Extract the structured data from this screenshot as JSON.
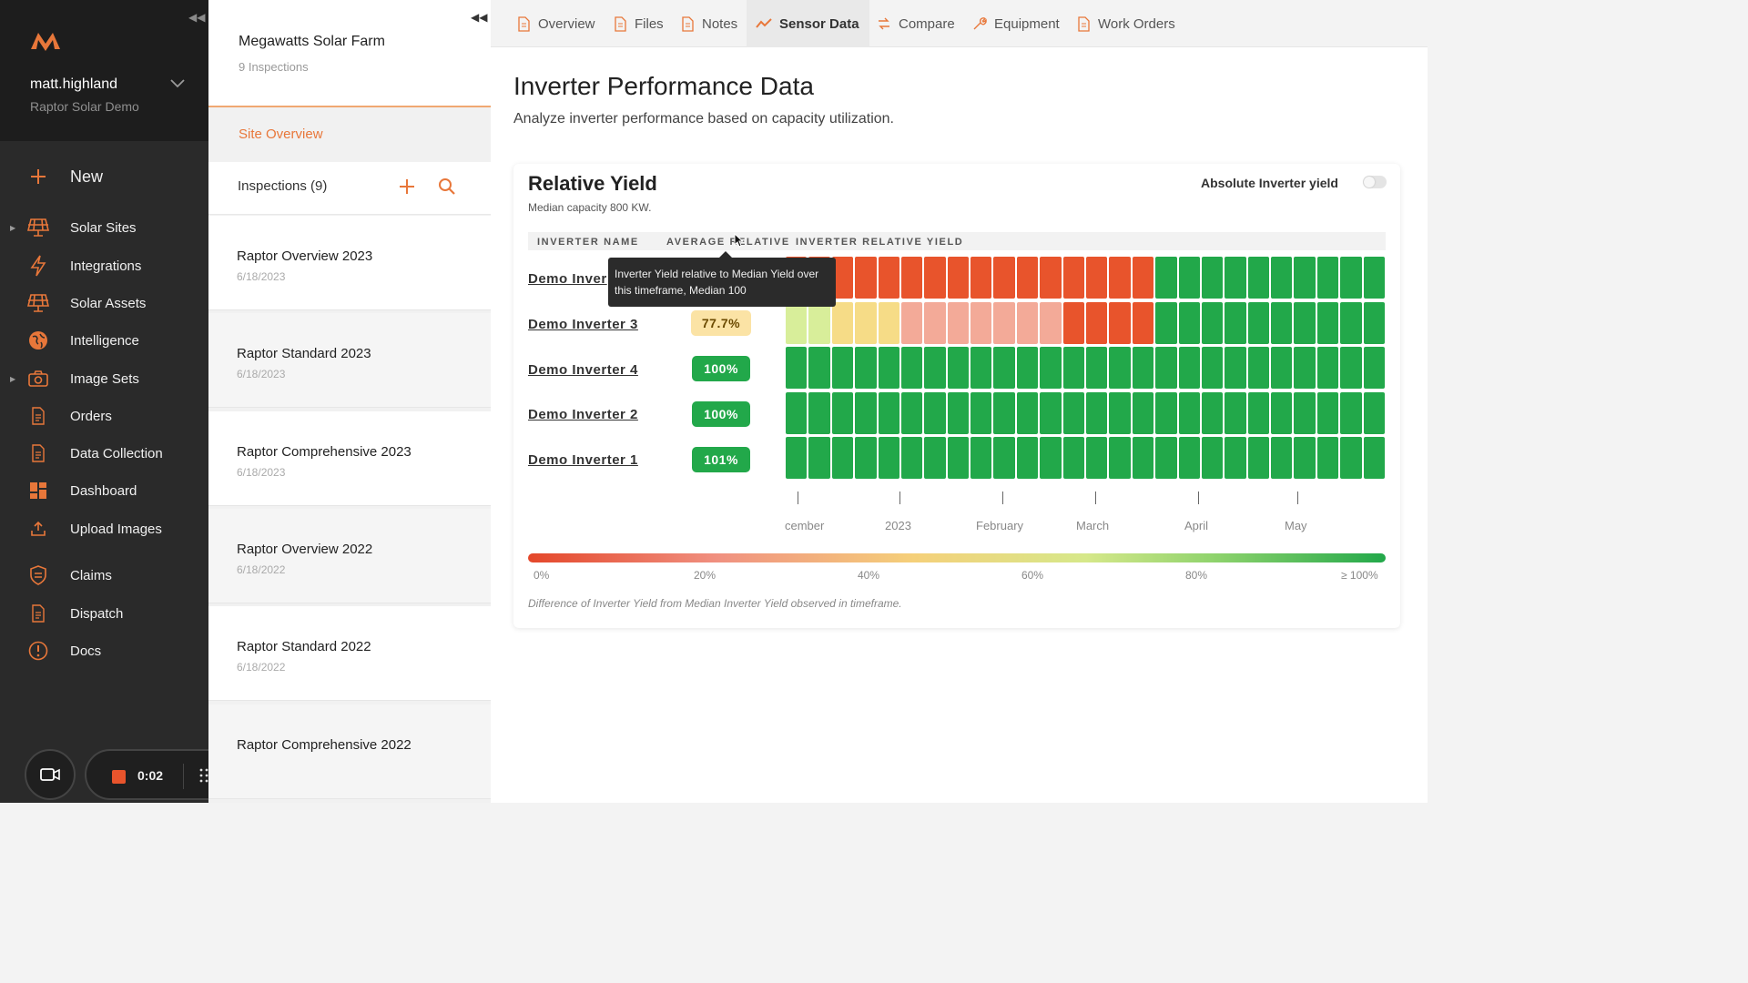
{
  "sidebar": {
    "user": {
      "name": "matt.highland",
      "org": "Raptor Solar Demo"
    },
    "items": [
      {
        "id": "new",
        "label": "New",
        "icon": "plus-icon"
      },
      {
        "id": "solar-sites",
        "label": "Solar Sites",
        "icon": "solar-panel-icon"
      },
      {
        "id": "integrations",
        "label": "Integrations",
        "icon": "lightning-icon"
      },
      {
        "id": "solar-assets",
        "label": "Solar Assets",
        "icon": "solar-panel-icon"
      },
      {
        "id": "intelligence",
        "label": "Intelligence",
        "icon": "globe-icon"
      },
      {
        "id": "image-sets",
        "label": "Image Sets",
        "icon": "camera-icon"
      },
      {
        "id": "orders",
        "label": "Orders",
        "icon": "document-icon"
      },
      {
        "id": "data-collection",
        "label": "Data Collection",
        "icon": "document-icon"
      },
      {
        "id": "dashboard",
        "label": "Dashboard",
        "icon": "dashboard-icon"
      },
      {
        "id": "upload-images",
        "label": "Upload Images",
        "icon": "upload-icon"
      },
      {
        "id": "claims",
        "label": "Claims",
        "icon": "shield-icon"
      },
      {
        "id": "dispatch",
        "label": "Dispatch",
        "icon": "document-icon"
      },
      {
        "id": "docs",
        "label": "Docs",
        "icon": "info-icon"
      }
    ]
  },
  "recorder": {
    "time": "0:02"
  },
  "site": {
    "name": "Megawatts Solar Farm",
    "inspections_count_label": "9 Inspections",
    "overview_link": "Site Overview",
    "inspections_header": "Inspections (9)",
    "inspections": [
      {
        "name": "Raptor Overview 2023",
        "date": "6/18/2023"
      },
      {
        "name": "Raptor Standard 2023",
        "date": "6/18/2023"
      },
      {
        "name": "Raptor Comprehensive 2023",
        "date": "6/18/2023"
      },
      {
        "name": "Raptor Overview 2022",
        "date": "6/18/2022"
      },
      {
        "name": "Raptor Standard 2022",
        "date": "6/18/2022"
      },
      {
        "name": "Raptor Comprehensive 2022",
        "date": ""
      }
    ]
  },
  "tabs": [
    {
      "label": "Overview",
      "icon": "document-icon",
      "active": false
    },
    {
      "label": "Files",
      "icon": "document-icon",
      "active": false
    },
    {
      "label": "Notes",
      "icon": "document-icon",
      "active": false
    },
    {
      "label": "Sensor Data",
      "icon": "line-chart-icon",
      "active": true
    },
    {
      "label": "Compare",
      "icon": "compare-icon",
      "active": false
    },
    {
      "label": "Equipment",
      "icon": "wrench-icon",
      "active": false
    },
    {
      "label": "Work Orders",
      "icon": "document-icon",
      "active": false
    }
  ],
  "page": {
    "title": "Inverter Performance Data",
    "subtitle": "Analyze inverter performance based on capacity utilization."
  },
  "card": {
    "title": "Relative Yield",
    "median": "Median capacity 800 KW.",
    "toggle_label": "Absolute Inverter yield",
    "toggle_on": false,
    "columns": [
      "INVERTER NAME",
      "AVERAGE RELATIVE",
      "INVERTER RELATIVE YIELD"
    ],
    "tooltip": "Inverter Yield relative to Median Yield over this timeframe, Median 100",
    "legend_caption": "Difference of Inverter Yield from Median Inverter Yield observed in timeframe."
  },
  "colors": {
    "accent": "#e8773a",
    "high": "#22a84a",
    "low": "#e8542c",
    "mid_light": "#f3aa98",
    "yellow": "#f6dc87",
    "yellow_green": "#d8ee9a",
    "badge_yellow_bg": "#fbe3a5",
    "badge_yellow_text": "#6b4a00"
  },
  "chart_data": {
    "type": "heatmap",
    "title": "Relative Yield",
    "x_tick_labels": [
      "cember",
      "2023",
      "February",
      "March",
      "April",
      "May"
    ],
    "legend_labels": [
      "0%",
      "20%",
      "40%",
      "60%",
      "80%",
      "≥ 100%"
    ],
    "rows": [
      {
        "name": "Demo Inver",
        "average": "",
        "cells": [
          "low",
          "low",
          "low",
          "low",
          "low",
          "low",
          "low",
          "low",
          "low",
          "low",
          "low",
          "low",
          "low",
          "low",
          "low",
          "low",
          "high",
          "high",
          "high",
          "high",
          "high",
          "high",
          "high",
          "high",
          "high",
          "high"
        ]
      },
      {
        "name": "Demo Inverter 3",
        "average": "77.7%",
        "cells": [
          "yellow_green",
          "yellow_green",
          "yellow",
          "yellow",
          "yellow",
          "mid_light",
          "mid_light",
          "mid_light",
          "mid_light",
          "mid_light",
          "mid_light",
          "mid_light",
          "low",
          "low",
          "low",
          "low",
          "high",
          "high",
          "high",
          "high",
          "high",
          "high",
          "high",
          "high",
          "high",
          "high"
        ]
      },
      {
        "name": "Demo Inverter 4",
        "average": "100%",
        "cells": [
          "high",
          "high",
          "high",
          "high",
          "high",
          "high",
          "high",
          "high",
          "high",
          "high",
          "high",
          "high",
          "high",
          "high",
          "high",
          "high",
          "high",
          "high",
          "high",
          "high",
          "high",
          "high",
          "high",
          "high",
          "high",
          "high"
        ]
      },
      {
        "name": "Demo Inverter 2",
        "average": "100%",
        "cells": [
          "high",
          "high",
          "high",
          "high",
          "high",
          "high",
          "high",
          "high",
          "high",
          "high",
          "high",
          "high",
          "high",
          "high",
          "high",
          "high",
          "high",
          "high",
          "high",
          "high",
          "high",
          "high",
          "high",
          "high",
          "high",
          "high"
        ]
      },
      {
        "name": "Demo Inverter 1",
        "average": "101%",
        "cells": [
          "high",
          "high",
          "high",
          "high",
          "high",
          "high",
          "high",
          "high",
          "high",
          "high",
          "high",
          "high",
          "high",
          "high",
          "high",
          "high",
          "high",
          "high",
          "high",
          "high",
          "high",
          "high",
          "high",
          "high",
          "high",
          "high"
        ]
      }
    ]
  }
}
